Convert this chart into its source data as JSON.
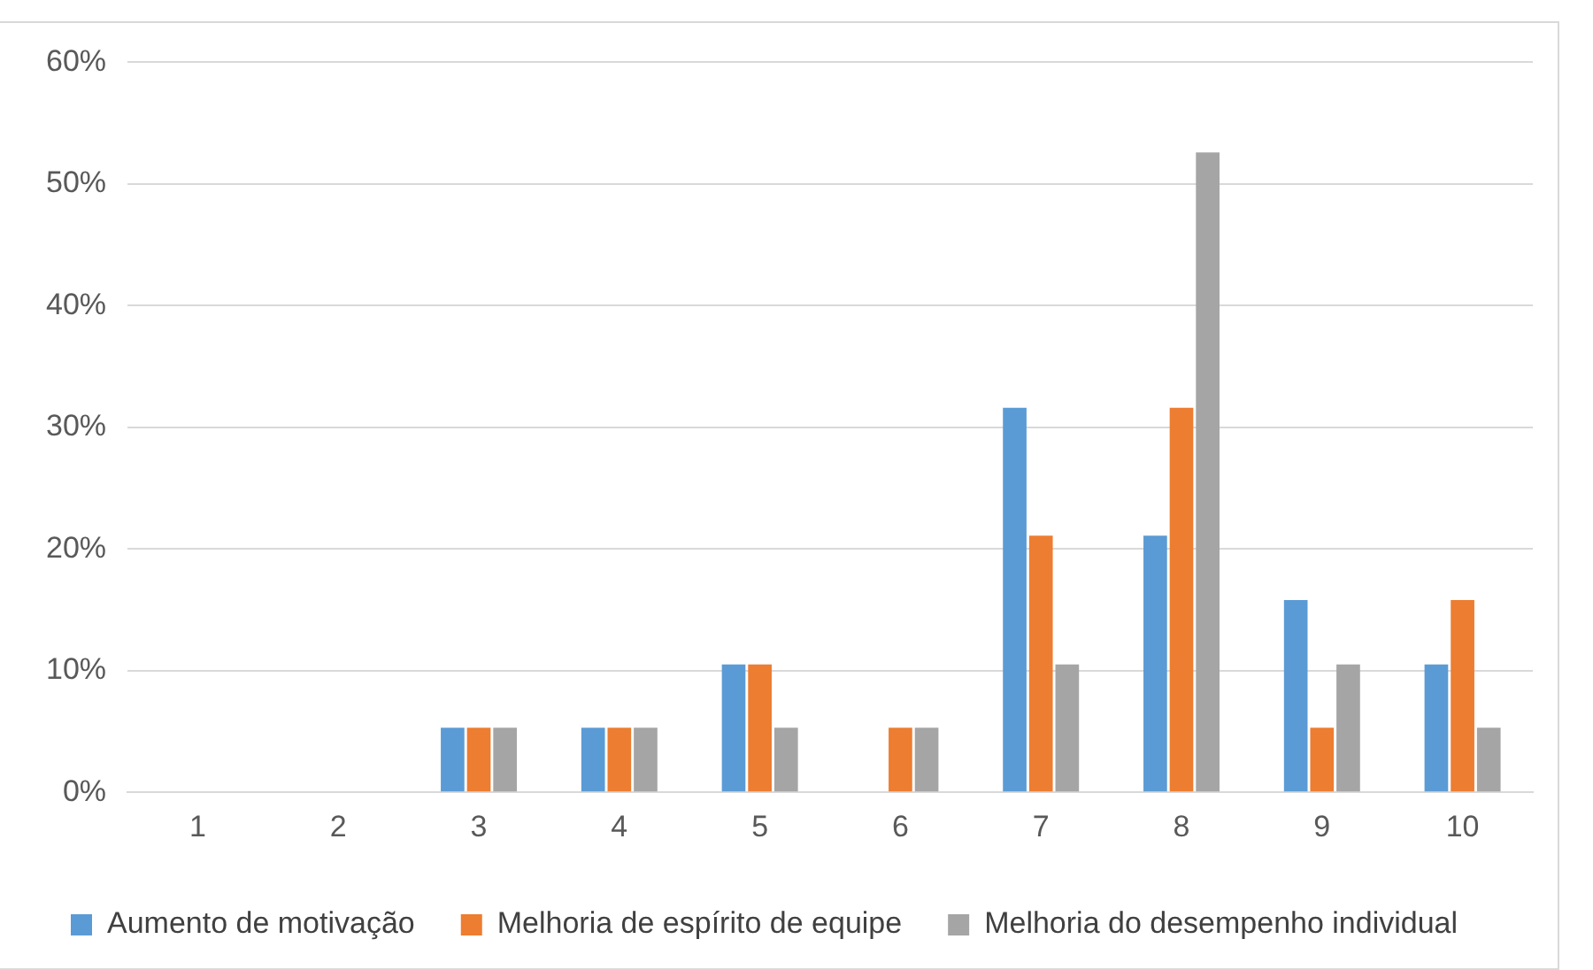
{
  "chart_data": {
    "type": "bar",
    "categories": [
      "1",
      "2",
      "3",
      "4",
      "5",
      "6",
      "7",
      "8",
      "9",
      "10"
    ],
    "series": [
      {
        "name": "Aumento de motivação",
        "color": "#5b9bd5",
        "values": [
          0,
          0,
          5.3,
          5.3,
          10.5,
          0,
          31.6,
          21.1,
          15.8,
          10.5
        ]
      },
      {
        "name": "Melhoria de espírito de equipe",
        "color": "#ed7d31",
        "values": [
          0,
          0,
          5.3,
          5.3,
          10.5,
          5.3,
          21.1,
          31.6,
          5.3,
          15.8
        ]
      },
      {
        "name": "Melhoria do desempenho individual",
        "color": "#a5a5a5",
        "values": [
          0,
          0,
          5.3,
          5.3,
          5.3,
          5.3,
          10.5,
          52.6,
          10.5,
          5.3
        ]
      }
    ],
    "ylim": [
      0,
      60
    ],
    "yticks": [
      {
        "value": 0,
        "label": "0%"
      },
      {
        "value": 10,
        "label": "10%"
      },
      {
        "value": 20,
        "label": "20%"
      },
      {
        "value": 30,
        "label": "30%"
      },
      {
        "value": 40,
        "label": "40%"
      },
      {
        "value": 50,
        "label": "50%"
      },
      {
        "value": 60,
        "label": "60%"
      }
    ],
    "grid": "y",
    "legend": "bottom"
  }
}
